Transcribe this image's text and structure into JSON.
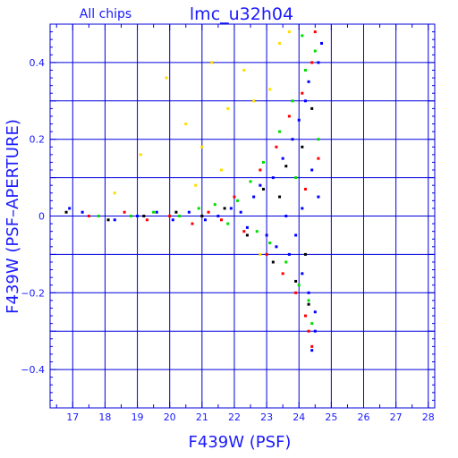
{
  "chart_data": {
    "type": "scatter",
    "title": "lmc_u32h04",
    "subtitle": "All chips",
    "xlabel": "F439W (PSF)",
    "ylabel": "F439W (PSF–APERTURE)",
    "xlim": [
      16.3,
      28.2
    ],
    "ylim": [
      -0.5,
      0.5
    ],
    "x_ticks": [
      17,
      18,
      19,
      20,
      21,
      22,
      23,
      24,
      25,
      26,
      27,
      28
    ],
    "y_ticks": [
      -0.4,
      -0.2,
      0,
      0.2,
      0.4
    ],
    "y_tick_labels": [
      "−0.4",
      "−0.2",
      "0",
      "0.2",
      "0.4"
    ],
    "grid": true,
    "grid_x": [
      17,
      18,
      19,
      20,
      21,
      22,
      23,
      24,
      25,
      26,
      27,
      28
    ],
    "grid_y": [
      -0.4,
      -0.3,
      -0.2,
      -0.1,
      0,
      0.1,
      0.2,
      0.3,
      0.4
    ],
    "series": [
      {
        "color": "#0000ff",
        "points": [
          [
            16.9,
            0.02
          ],
          [
            17.3,
            0.01
          ],
          [
            18.3,
            -0.01
          ],
          [
            19.0,
            0.0
          ],
          [
            19.6,
            0.01
          ],
          [
            20.1,
            -0.01
          ],
          [
            20.6,
            0.01
          ],
          [
            21.1,
            -0.01
          ],
          [
            21.5,
            0.0
          ],
          [
            21.9,
            0.02
          ],
          [
            22.2,
            0.01
          ],
          [
            22.4,
            -0.03
          ],
          [
            22.6,
            0.05
          ],
          [
            22.8,
            0.08
          ],
          [
            23.0,
            -0.05
          ],
          [
            23.2,
            0.1
          ],
          [
            23.3,
            -0.08
          ],
          [
            23.5,
            0.15
          ],
          [
            23.7,
            -0.1
          ],
          [
            23.8,
            0.2
          ],
          [
            23.9,
            -0.05
          ],
          [
            24.0,
            0.25
          ],
          [
            24.1,
            -0.15
          ],
          [
            24.2,
            0.3
          ],
          [
            24.3,
            -0.2
          ],
          [
            24.4,
            0.12
          ],
          [
            24.5,
            -0.25
          ],
          [
            24.6,
            0.4
          ],
          [
            24.4,
            -0.35
          ],
          [
            24.7,
            0.45
          ],
          [
            24.5,
            -0.3
          ],
          [
            24.3,
            0.35
          ],
          [
            24.6,
            0.05
          ],
          [
            23.6,
            0.0
          ],
          [
            24.1,
            0.02
          ]
        ]
      },
      {
        "color": "#00dd00",
        "points": [
          [
            17.8,
            0.0
          ],
          [
            18.8,
            0.0
          ],
          [
            19.5,
            0.01
          ],
          [
            20.3,
            0.0
          ],
          [
            20.9,
            0.02
          ],
          [
            21.4,
            0.03
          ],
          [
            21.8,
            -0.02
          ],
          [
            22.1,
            0.04
          ],
          [
            22.5,
            0.09
          ],
          [
            22.7,
            -0.04
          ],
          [
            22.9,
            0.14
          ],
          [
            23.1,
            -0.07
          ],
          [
            23.4,
            0.22
          ],
          [
            23.6,
            -0.12
          ],
          [
            23.8,
            0.3
          ],
          [
            24.0,
            -0.18
          ],
          [
            24.2,
            0.38
          ],
          [
            24.3,
            -0.22
          ],
          [
            24.5,
            0.43
          ],
          [
            24.4,
            -0.28
          ],
          [
            24.6,
            0.2
          ],
          [
            23.9,
            0.1
          ],
          [
            24.1,
            0.47
          ]
        ]
      },
      {
        "color": "#ff0000",
        "points": [
          [
            17.5,
            0.0
          ],
          [
            18.6,
            0.01
          ],
          [
            19.3,
            -0.01
          ],
          [
            20.0,
            0.0
          ],
          [
            20.7,
            -0.02
          ],
          [
            21.2,
            0.01
          ],
          [
            21.6,
            -0.01
          ],
          [
            22.0,
            0.05
          ],
          [
            22.3,
            -0.04
          ],
          [
            22.8,
            0.12
          ],
          [
            23.0,
            -0.1
          ],
          [
            23.3,
            0.18
          ],
          [
            23.5,
            -0.15
          ],
          [
            23.7,
            0.26
          ],
          [
            23.9,
            -0.2
          ],
          [
            24.1,
            0.32
          ],
          [
            24.2,
            -0.26
          ],
          [
            24.4,
            0.4
          ],
          [
            24.3,
            -0.3
          ],
          [
            24.5,
            0.48
          ],
          [
            24.4,
            -0.34
          ],
          [
            24.6,
            0.15
          ],
          [
            24.2,
            0.07
          ]
        ]
      },
      {
        "color": "#000000",
        "points": [
          [
            16.8,
            0.01
          ],
          [
            18.1,
            -0.01
          ],
          [
            19.2,
            0.0
          ],
          [
            20.2,
            0.01
          ],
          [
            21.0,
            0.0
          ],
          [
            21.7,
            0.02
          ],
          [
            22.4,
            -0.05
          ],
          [
            22.9,
            0.07
          ],
          [
            23.2,
            -0.12
          ],
          [
            23.6,
            0.13
          ],
          [
            23.9,
            -0.17
          ],
          [
            24.1,
            0.18
          ],
          [
            24.3,
            -0.23
          ],
          [
            24.4,
            0.28
          ],
          [
            24.2,
            -0.1
          ],
          [
            23.4,
            0.05
          ]
        ]
      },
      {
        "color": "#ffdd00",
        "points": [
          [
            18.3,
            0.06
          ],
          [
            19.1,
            0.16
          ],
          [
            19.9,
            0.36
          ],
          [
            20.5,
            0.24
          ],
          [
            21.0,
            0.18
          ],
          [
            21.3,
            0.4
          ],
          [
            21.8,
            0.28
          ],
          [
            22.3,
            0.38
          ],
          [
            22.6,
            0.3
          ],
          [
            22.8,
            -0.1
          ],
          [
            23.1,
            0.33
          ],
          [
            23.4,
            0.45
          ],
          [
            23.7,
            0.48
          ],
          [
            21.6,
            0.12
          ],
          [
            20.8,
            0.08
          ]
        ]
      }
    ]
  }
}
